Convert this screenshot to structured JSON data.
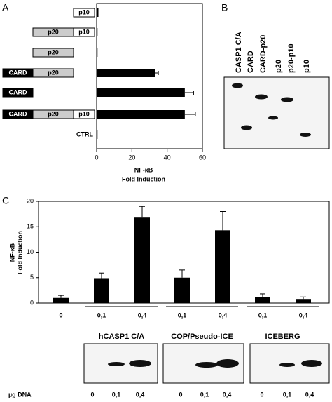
{
  "panels": [
    "A",
    "B",
    "C"
  ],
  "blot_b": {
    "lanes": [
      "CASP1 C/A",
      "CARD",
      "CARD-p20",
      "p20",
      "p20-p10",
      "p10"
    ]
  },
  "chart_data": [
    {
      "type": "hbar",
      "categories": [
        [
          "p10"
        ],
        [
          "p20",
          "p10"
        ],
        [
          "p20"
        ],
        [
          "CARD",
          "p20"
        ],
        [
          "CARD"
        ],
        [
          "CARD",
          "p20",
          "p10"
        ],
        [
          "CTRL"
        ]
      ],
      "values": [
        1,
        0.5,
        0.5,
        33,
        50,
        50,
        0.5
      ],
      "errors": [
        null,
        null,
        null,
        2,
        5,
        6,
        null
      ],
      "xlim": [
        0,
        60
      ],
      "xticks": [
        0,
        20,
        40,
        60
      ],
      "xlabel": [
        "NF-κB",
        "Fold Induction"
      ],
      "color": "#000000"
    },
    {
      "type": "bar",
      "categories": [
        "0",
        "0,1",
        "0,4",
        "0,1",
        "0,4",
        "0,1",
        "0,4"
      ],
      "groups": [
        "hCASP1 C/A",
        "COP/Pseudo-ICE",
        "ICEBERG"
      ],
      "values": [
        1,
        4.9,
        16.8,
        5,
        14.3,
        1.2,
        0.8
      ],
      "errors": [
        0.5,
        1,
        2.2,
        1.5,
        3.7,
        0.6,
        0.4
      ],
      "ylim": [
        0,
        20
      ],
      "yticks": [
        0,
        5,
        10,
        15,
        20
      ],
      "ylabel": [
        "NF-κB",
        "Fold Induction"
      ],
      "color": "#000000"
    }
  ],
  "blot_c": {
    "unit": "µg DNA",
    "lanes": [
      "0",
      "0,1",
      "0,4",
      "0",
      "0,1",
      "0,4",
      "0",
      "0,1",
      "0,4"
    ]
  }
}
